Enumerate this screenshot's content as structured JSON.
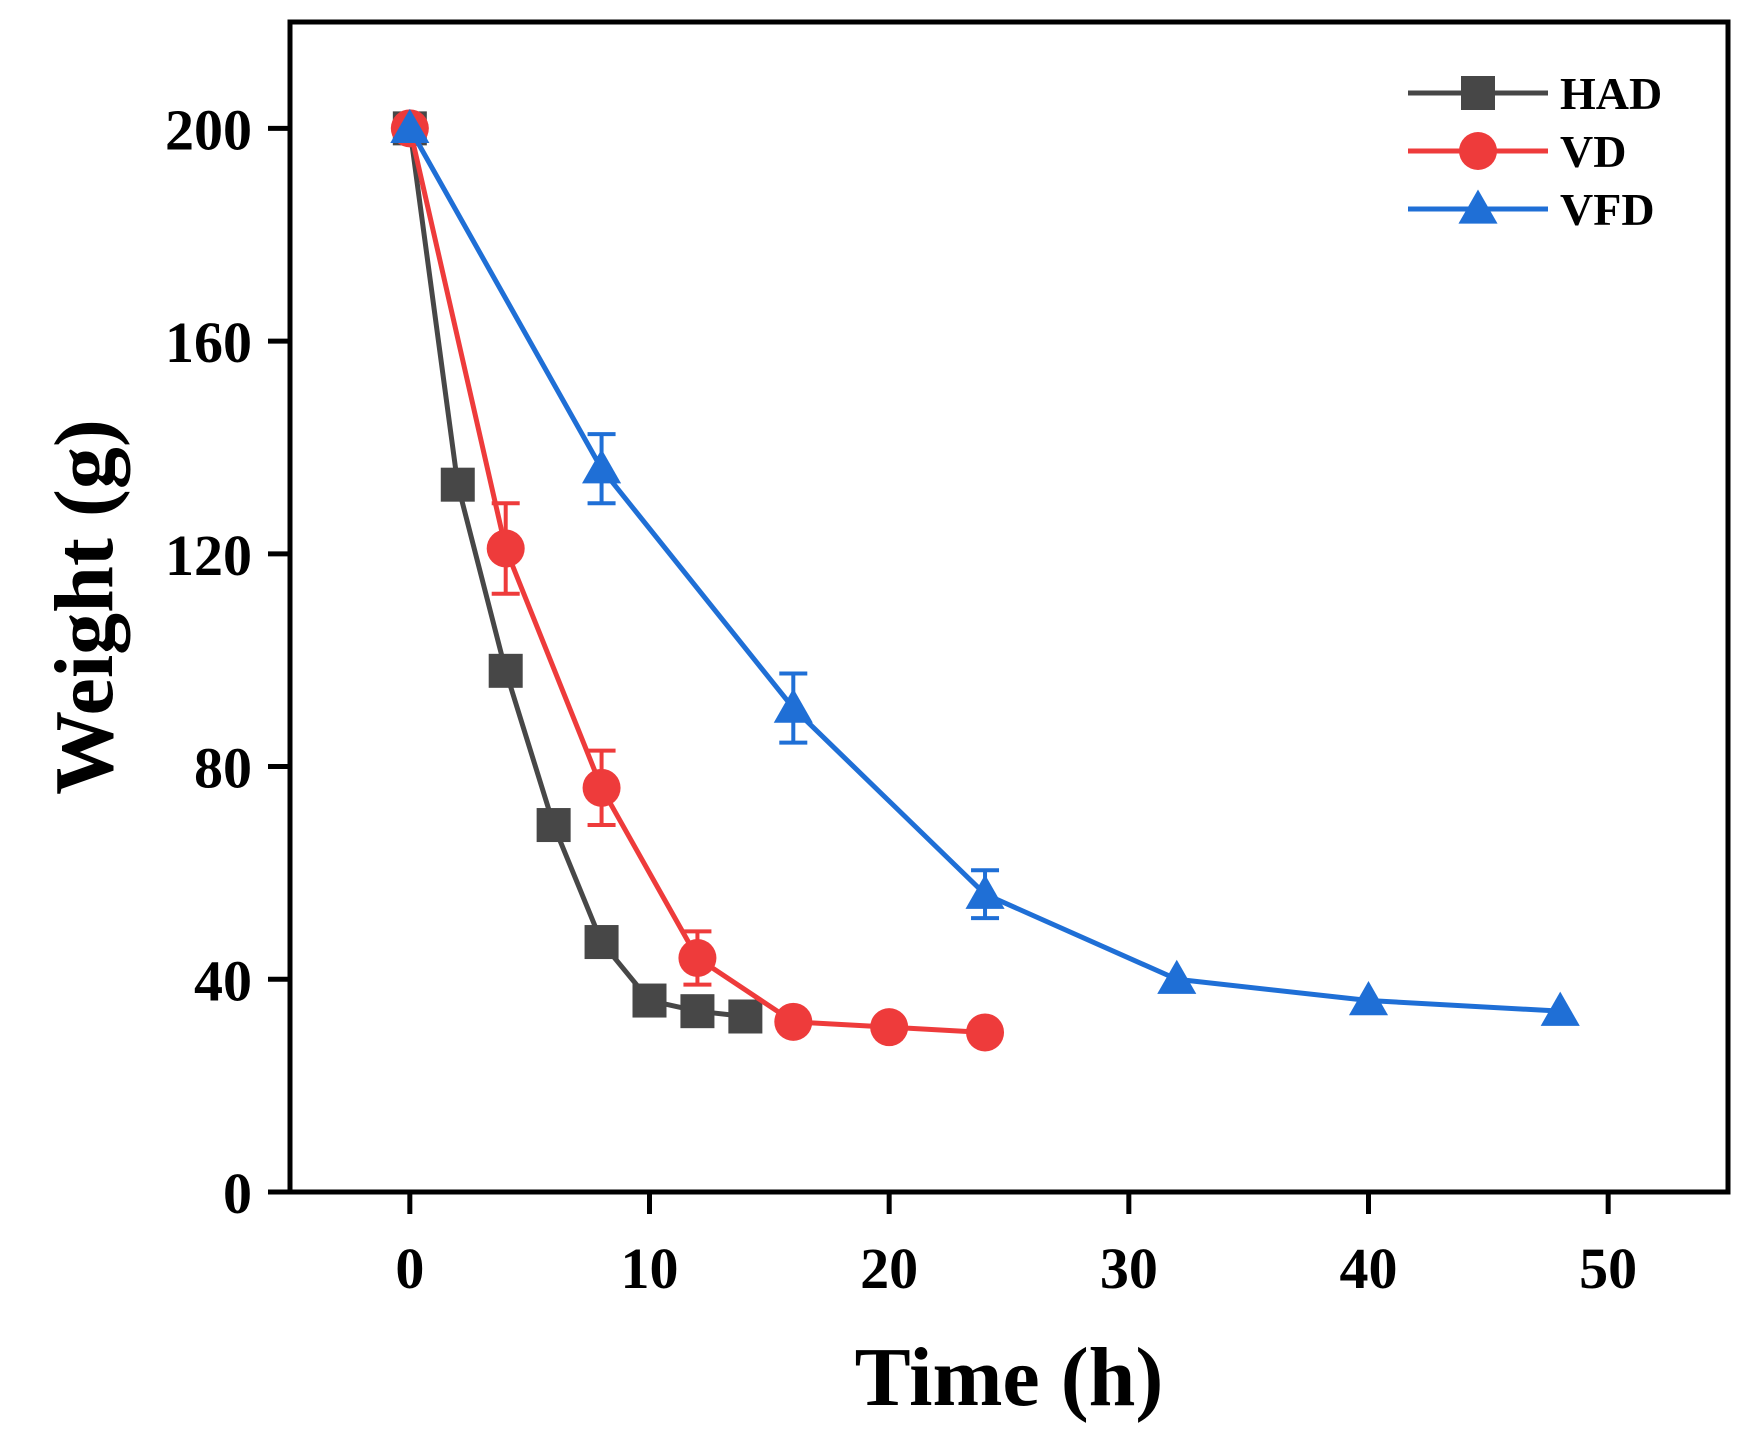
{
  "chart_data": {
    "type": "line",
    "xlabel": "Time (h)",
    "ylabel": "Weight (g)",
    "xlim": [
      -5,
      55
    ],
    "ylim": [
      0,
      220
    ],
    "xticks": [
      0,
      10,
      20,
      30,
      40,
      50
    ],
    "xtick_labels": [
      "0",
      "10",
      "20",
      "30",
      "40",
      "50"
    ],
    "yticks": [
      0,
      40,
      80,
      120,
      160,
      200
    ],
    "ytick_labels": [
      "0",
      "40",
      "80",
      "120",
      "160",
      "200"
    ],
    "legend_position": "top-right",
    "series": [
      {
        "name": "HAD",
        "color": "#474747",
        "marker": "square",
        "x": [
          0,
          2,
          4,
          6,
          8,
          10,
          12,
          14
        ],
        "y": [
          200,
          133,
          98,
          69,
          47,
          36,
          34,
          33
        ],
        "err": [
          0,
          0,
          0,
          0,
          0,
          0,
          0,
          0
        ]
      },
      {
        "name": "VD",
        "color": "#ee3b3b",
        "marker": "circle",
        "x": [
          0,
          4,
          8,
          12,
          16,
          20,
          24
        ],
        "y": [
          200,
          121,
          76,
          44,
          32,
          31,
          30
        ],
        "err": [
          0,
          8.5,
          7,
          5,
          0,
          0,
          0
        ]
      },
      {
        "name": "VFD",
        "color": "#1f6fd6",
        "marker": "triangle",
        "x": [
          0,
          8,
          16,
          24,
          32,
          40,
          48
        ],
        "y": [
          200,
          136,
          91,
          56,
          40,
          36,
          34
        ],
        "err": [
          0,
          6.5,
          6.5,
          4.5,
          0,
          0,
          0
        ]
      }
    ]
  }
}
